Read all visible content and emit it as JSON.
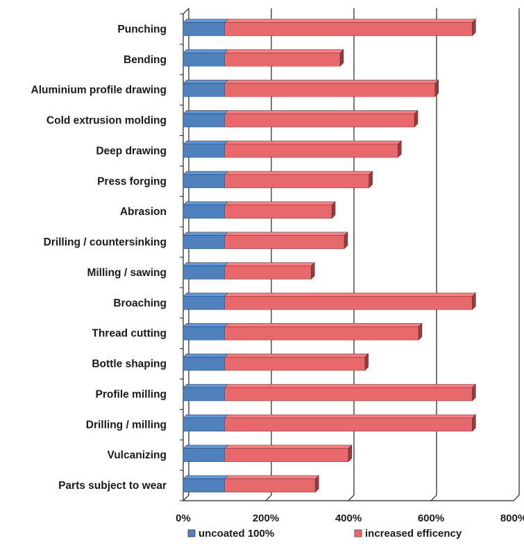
{
  "chart_data": {
    "type": "bar",
    "orientation": "horizontal",
    "stacked": true,
    "categories": [
      "Punching",
      "Bending",
      "Aluminium profile drawing",
      "Cold extrusion molding",
      "Deep drawing",
      "Press forging",
      "Abrasion",
      "Drilling / countersinking",
      "Milling / sawing",
      "Broaching",
      "Thread cutting",
      "Bottle shaping",
      "Profile milling",
      "Drilling / milling",
      "Vulcanizing",
      "Parts subject to wear"
    ],
    "series": [
      {
        "name": "uncoated 100%",
        "color": "#4f81bd",
        "values": [
          100,
          100,
          100,
          100,
          100,
          100,
          100,
          100,
          100,
          100,
          100,
          100,
          100,
          100,
          100,
          100
        ]
      },
      {
        "name": "increased efficency",
        "color": "#e8696b",
        "values": [
          600,
          280,
          510,
          460,
          420,
          350,
          260,
          290,
          210,
          600,
          470,
          340,
          600,
          600,
          300,
          220
        ]
      }
    ],
    "xlim": [
      0,
      800
    ],
    "x_ticks": [
      "0%",
      "200%",
      "400%",
      "600%",
      "800%"
    ],
    "x_tick_values": [
      0,
      200,
      400,
      600,
      800
    ],
    "grid": "vertical",
    "legend": "bottom"
  }
}
